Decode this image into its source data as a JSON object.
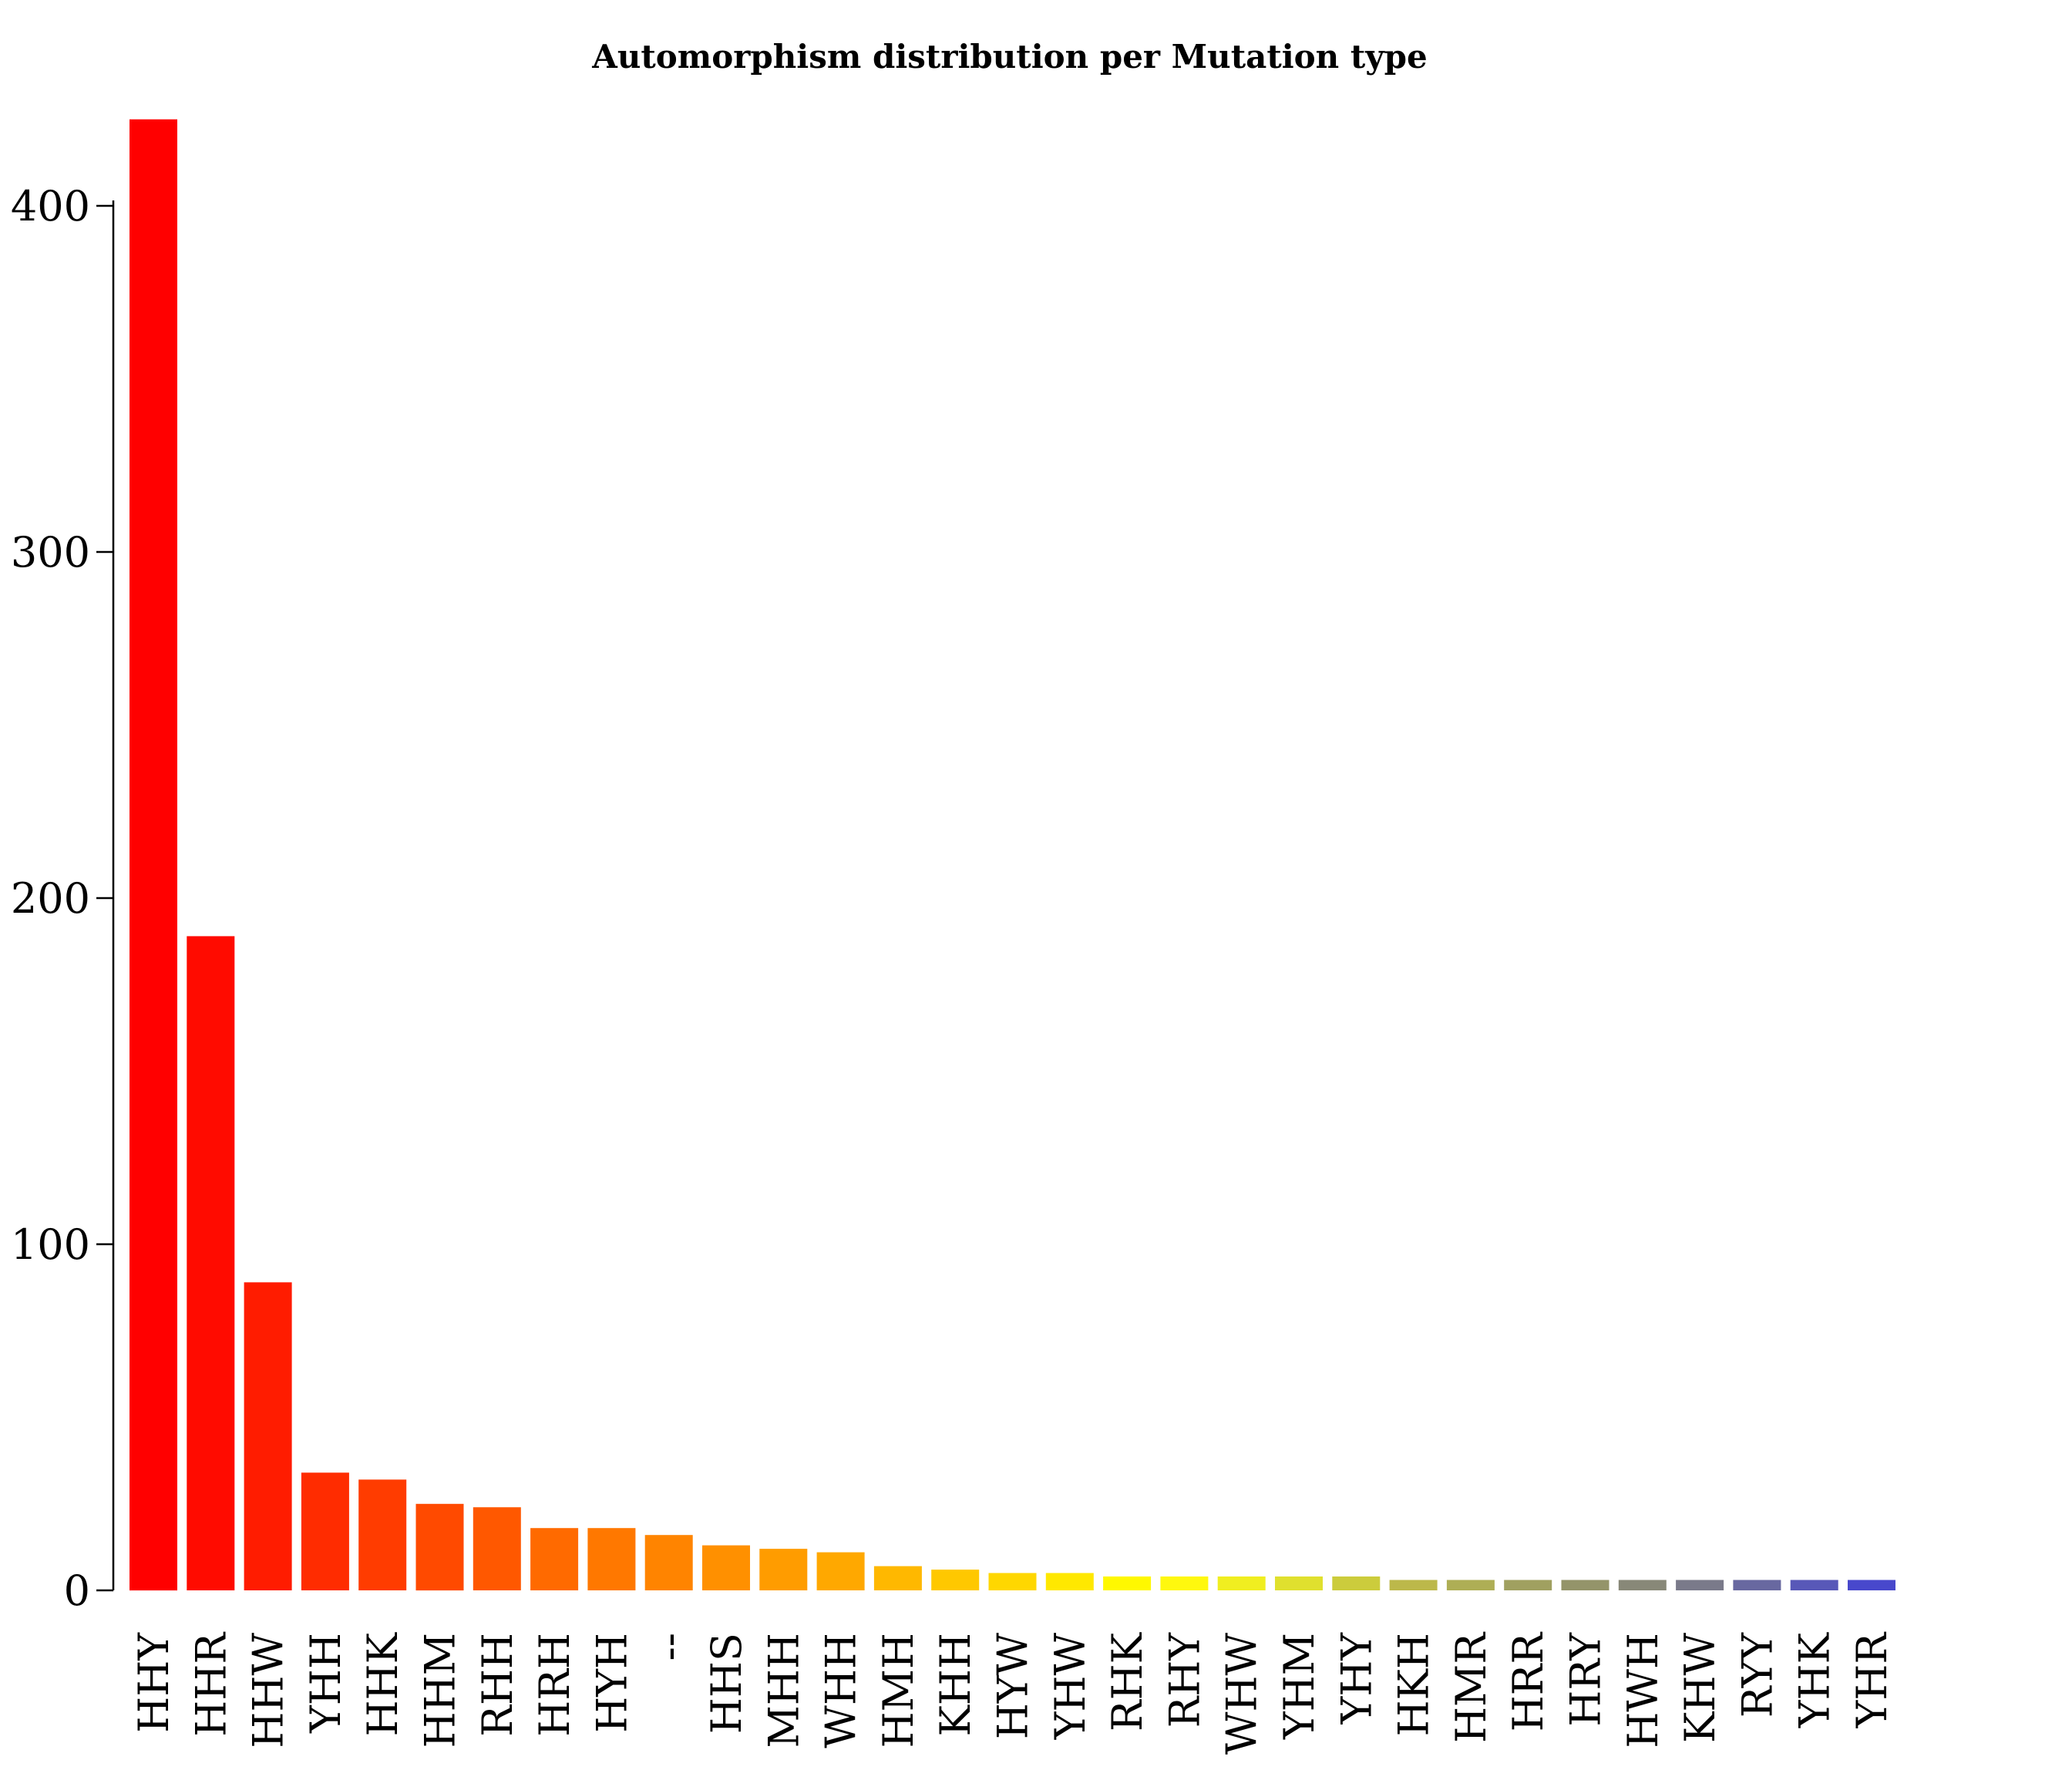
{
  "chart_data": {
    "type": "bar",
    "title": "Automorphism distribution per Mutation type",
    "xlabel": "",
    "ylabel": "",
    "ylim": [
      0,
      425
    ],
    "yticks": [
      0,
      100,
      200,
      300,
      400
    ],
    "ytick_labels": [
      "0",
      "100",
      "200",
      "300",
      "400"
    ],
    "grid": false,
    "legend": "none",
    "categories": [
      "HHY",
      "HHR",
      "HHW",
      "YHH",
      "HHK",
      "HHM",
      "RHH",
      "HRH",
      "HYH",
      "--",
      "HHS",
      "MHH",
      "WHH",
      "HMH",
      "KHH",
      "HYW",
      "YHW",
      "RHK",
      "RHY",
      "WHW",
      "YHM",
      "YHY",
      "HKH",
      "HMR",
      "HRR",
      "HRY",
      "HWH",
      "KHW",
      "RYY",
      "YHK",
      "YHR"
    ],
    "values": [
      425,
      189,
      89,
      34,
      32,
      25,
      24,
      18,
      18,
      16,
      13,
      12,
      11,
      7,
      6,
      5,
      5,
      4,
      4,
      4,
      4,
      4,
      3,
      3,
      3,
      3,
      3,
      3,
      3,
      3,
      3
    ],
    "colors": [
      "#ff0000",
      "#ff0b00",
      "#ff1c00",
      "#ff2c00",
      "#ff3c00",
      "#ff4a00",
      "#ff5800",
      "#ff6a00",
      "#ff7800",
      "#ff8400",
      "#ff9000",
      "#ff9c00",
      "#ffa800",
      "#ffb800",
      "#ffc800",
      "#ffd700",
      "#ffe800",
      "#fff800",
      "#fff80e",
      "#f0ee20",
      "#e0e02e",
      "#cccc3c",
      "#bcb84a",
      "#aeae55",
      "#a0a060",
      "#94946a",
      "#888878",
      "#7a7a8a",
      "#6868a0",
      "#5858b8",
      "#4848cc"
    ]
  }
}
